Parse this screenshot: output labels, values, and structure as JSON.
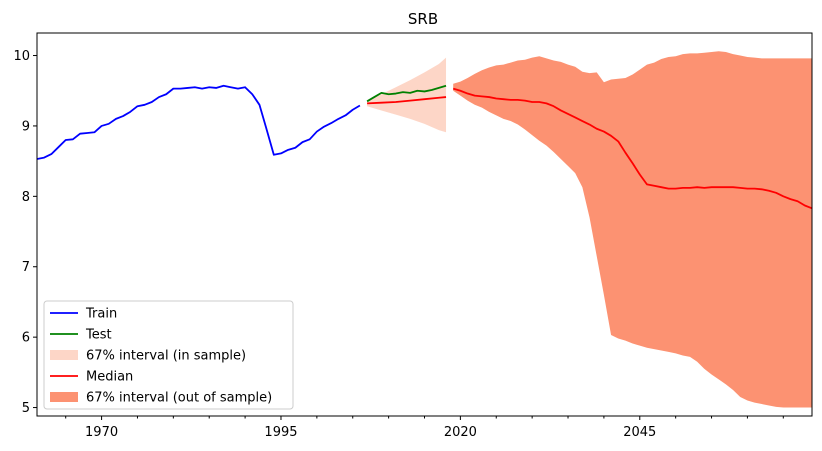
{
  "chart_data": {
    "type": "line",
    "title": "SRB",
    "xlabel": "",
    "ylabel": "",
    "xlim": [
      1961,
      2069
    ],
    "ylim": [
      4.88,
      10.32
    ],
    "x_ticks": [
      1970,
      1995,
      2020,
      2045
    ],
    "y_ticks": [
      5,
      6,
      7,
      8,
      9,
      10
    ],
    "grid": false,
    "legend_position": "lower-left",
    "colors": {
      "train": "#0000ff",
      "test": "#008000",
      "median": "#ff0000",
      "band_in": "#fcbba1",
      "band_out": "#fc9272"
    },
    "series": [
      {
        "name": "Train",
        "type": "line",
        "x": [
          1961,
          1962,
          1963,
          1964,
          1965,
          1966,
          1967,
          1968,
          1969,
          1970,
          1971,
          1972,
          1973,
          1974,
          1975,
          1976,
          1977,
          1978,
          1979,
          1980,
          1981,
          1982,
          1983,
          1984,
          1985,
          1986,
          1987,
          1988,
          1989,
          1990,
          1991,
          1992,
          1993,
          1994,
          1995,
          1996,
          1997,
          1998,
          1999,
          2000,
          2001,
          2002,
          2003,
          2004,
          2005,
          2006
        ],
        "y": [
          8.53,
          8.55,
          8.6,
          8.7,
          8.8,
          8.81,
          8.89,
          8.9,
          8.91,
          9.0,
          9.03,
          9.1,
          9.14,
          9.2,
          9.28,
          9.3,
          9.34,
          9.41,
          9.45,
          9.53,
          9.53,
          9.54,
          9.55,
          9.53,
          9.55,
          9.54,
          9.57,
          9.55,
          9.53,
          9.55,
          9.45,
          9.3,
          8.95,
          8.59,
          8.61,
          8.66,
          8.69,
          8.77,
          8.81,
          8.92,
          8.99,
          9.04,
          9.1,
          9.15,
          9.23,
          9.29
        ]
      },
      {
        "name": "Test",
        "type": "line",
        "x": [
          2007,
          2008,
          2009,
          2010,
          2011,
          2012,
          2013,
          2014,
          2015,
          2016,
          2017,
          2018
        ],
        "y": [
          9.35,
          9.41,
          9.47,
          9.45,
          9.46,
          9.48,
          9.47,
          9.5,
          9.49,
          9.51,
          9.54,
          9.57
        ]
      },
      {
        "name": "67% interval (in sample)",
        "type": "band",
        "x": [
          2007,
          2009,
          2011,
          2013,
          2015,
          2017,
          2018
        ],
        "lower": [
          9.28,
          9.22,
          9.16,
          9.1,
          9.03,
          8.94,
          8.91
        ],
        "upper": [
          9.36,
          9.45,
          9.55,
          9.65,
          9.76,
          9.88,
          9.97
        ]
      },
      {
        "name": "Median",
        "type": "line",
        "segments": [
          {
            "x": [
              2007,
              2009,
              2011,
              2013,
              2015,
              2017,
              2018
            ],
            "y": [
              9.32,
              9.33,
              9.34,
              9.36,
              9.38,
              9.4,
              9.41
            ]
          },
          {
            "x": [
              2019,
              2020,
              2021,
              2022,
              2023,
              2024,
              2025,
              2026,
              2027,
              2028,
              2029,
              2030,
              2031,
              2032,
              2033,
              2034,
              2035,
              2036,
              2037,
              2038,
              2039,
              2040,
              2041,
              2042,
              2043,
              2044,
              2045,
              2046,
              2047,
              2048,
              2049,
              2050,
              2051,
              2052,
              2053,
              2054,
              2055,
              2056,
              2057,
              2058,
              2059,
              2060,
              2061,
              2062,
              2063,
              2064,
              2065,
              2066,
              2067,
              2068,
              2069
            ],
            "y": [
              9.53,
              9.5,
              9.46,
              9.43,
              9.42,
              9.41,
              9.39,
              9.38,
              9.37,
              9.37,
              9.36,
              9.34,
              9.34,
              9.32,
              9.28,
              9.22,
              9.17,
              9.12,
              9.07,
              9.02,
              8.96,
              8.92,
              8.86,
              8.78,
              8.62,
              8.47,
              8.31,
              8.17,
              8.15,
              8.13,
              8.11,
              8.11,
              8.12,
              8.12,
              8.13,
              8.12,
              8.13,
              8.13,
              8.13,
              8.13,
              8.12,
              8.11,
              8.11,
              8.1,
              8.08,
              8.05,
              8.0,
              7.96,
              7.93,
              7.87,
              7.83
            ]
          }
        ]
      },
      {
        "name": "67% interval (out of sample)",
        "type": "band",
        "x": [
          2019,
          2020,
          2021,
          2022,
          2023,
          2024,
          2025,
          2026,
          2027,
          2028,
          2029,
          2030,
          2031,
          2032,
          2033,
          2034,
          2035,
          2036,
          2037,
          2038,
          2039,
          2040,
          2041,
          2042,
          2043,
          2044,
          2045,
          2046,
          2047,
          2048,
          2049,
          2050,
          2051,
          2052,
          2053,
          2054,
          2055,
          2056,
          2057,
          2058,
          2059,
          2060,
          2061,
          2062,
          2063,
          2064,
          2065,
          2066,
          2067,
          2068,
          2069
        ],
        "lower": [
          9.5,
          9.43,
          9.36,
          9.3,
          9.26,
          9.2,
          9.15,
          9.1,
          9.07,
          9.02,
          8.95,
          8.87,
          8.79,
          8.72,
          8.63,
          8.53,
          8.43,
          8.33,
          8.13,
          7.7,
          7.15,
          6.6,
          6.03,
          5.98,
          5.95,
          5.91,
          5.88,
          5.85,
          5.83,
          5.81,
          5.79,
          5.77,
          5.74,
          5.72,
          5.65,
          5.55,
          5.47,
          5.4,
          5.33,
          5.25,
          5.15,
          5.1,
          5.07,
          5.05,
          5.03,
          5.01,
          5.0,
          5.0,
          5.0,
          5.0,
          5.0
        ],
        "upper": [
          9.6,
          9.63,
          9.68,
          9.74,
          9.79,
          9.83,
          9.86,
          9.87,
          9.9,
          9.93,
          9.94,
          9.97,
          9.99,
          9.96,
          9.93,
          9.91,
          9.87,
          9.84,
          9.77,
          9.75,
          9.76,
          9.62,
          9.66,
          9.67,
          9.68,
          9.73,
          9.8,
          9.87,
          9.9,
          9.95,
          9.98,
          9.99,
          10.02,
          10.03,
          10.03,
          10.04,
          10.05,
          10.06,
          10.05,
          10.02,
          10.0,
          9.98,
          9.97,
          9.96,
          9.96,
          9.96,
          9.96,
          9.96,
          9.96,
          9.96,
          9.96
        ]
      }
    ],
    "legend": [
      {
        "label": "Train",
        "kind": "line",
        "color": "#0000ff"
      },
      {
        "label": "Test",
        "kind": "line",
        "color": "#008000"
      },
      {
        "label": "67% interval (in sample)",
        "kind": "patch",
        "color": "#fcbba1"
      },
      {
        "label": "Median",
        "kind": "line",
        "color": "#ff0000"
      },
      {
        "label": "67% interval (out of sample)",
        "kind": "patch",
        "color": "#fc9272"
      }
    ]
  }
}
